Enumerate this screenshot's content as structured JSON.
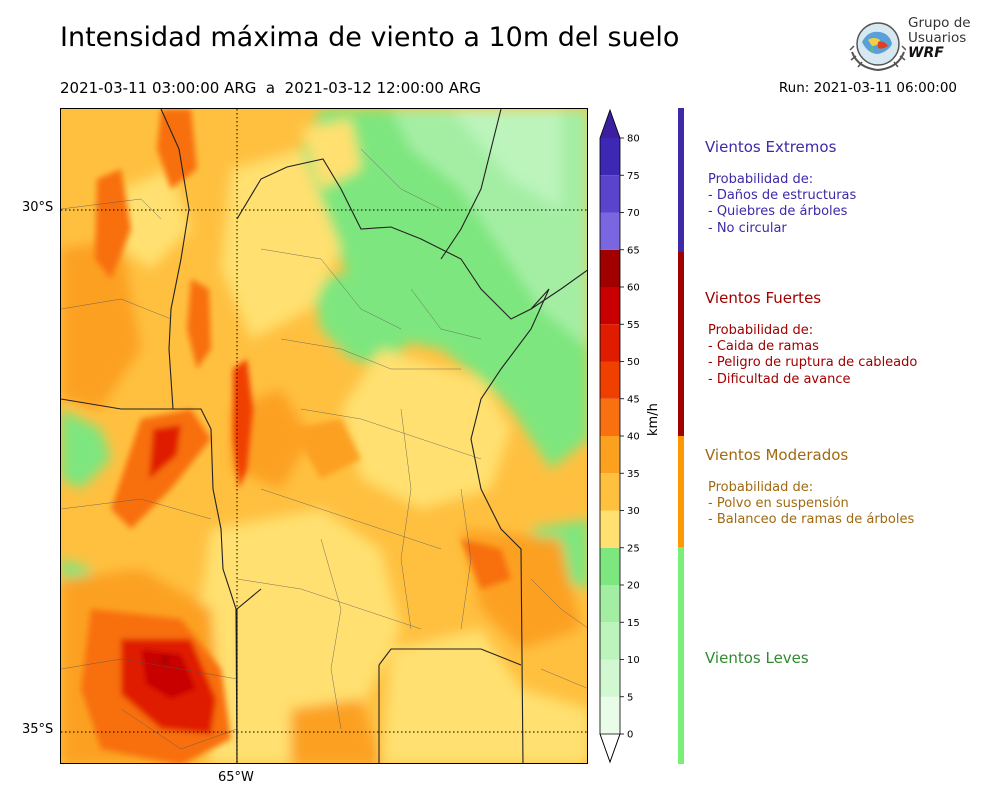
{
  "header": {
    "title": "Intensidad máxima de viento a 10m del suelo",
    "period": "2021-03-11 03:00:00 ARG  a  2021-03-12 12:00:00 ARG",
    "run": "Run: 2021-03-11 06:00:00"
  },
  "logo": {
    "line1": "Grupo de",
    "line2": "Usuarios",
    "line3": "WRF"
  },
  "map": {
    "lat_labels": [
      "30°S",
      "35°S"
    ],
    "lon_labels": [
      "65°W"
    ],
    "grid": "dotted",
    "colors": {
      "light_green": "#90e890",
      "green": "#78e078",
      "pale_yellow": "#ffe070",
      "yellow_orange": "#ffc040",
      "orange": "#f8a020",
      "dark_orange": "#f07010",
      "red_orange": "#e83800",
      "red": "#d01010",
      "dark_red": "#a00000"
    }
  },
  "colorbar": {
    "unit": "km/h",
    "ticks": [
      "80",
      "75",
      "70",
      "65",
      "60",
      "55",
      "50",
      "45",
      "40",
      "35",
      "30",
      "25",
      "20",
      "15",
      "10",
      "5",
      "0"
    ],
    "levels": [
      {
        "from": 0,
        "to": 5,
        "color": "#e8fce8"
      },
      {
        "from": 5,
        "to": 10,
        "color": "#d2f8d2"
      },
      {
        "from": 10,
        "to": 15,
        "color": "#bcf4bc"
      },
      {
        "from": 15,
        "to": 20,
        "color": "#a4eea4"
      },
      {
        "from": 20,
        "to": 25,
        "color": "#7ee67e"
      },
      {
        "from": 25,
        "to": 30,
        "color": "#ffe070"
      },
      {
        "from": 30,
        "to": 35,
        "color": "#ffc040"
      },
      {
        "from": 35,
        "to": 40,
        "color": "#fca020"
      },
      {
        "from": 40,
        "to": 45,
        "color": "#f87010"
      },
      {
        "from": 45,
        "to": 50,
        "color": "#f04000"
      },
      {
        "from": 50,
        "to": 55,
        "color": "#e01c00"
      },
      {
        "from": 55,
        "to": 60,
        "color": "#c80000"
      },
      {
        "from": 60,
        "to": 65,
        "color": "#a00000"
      },
      {
        "from": 65,
        "to": 70,
        "color": "#7a66e0"
      },
      {
        "from": 70,
        "to": 75,
        "color": "#5a44cc"
      },
      {
        "from": 75,
        "to": 80,
        "color": "#3c28b4"
      }
    ],
    "extend_top_color": "#3c1ea0",
    "extend_bottom_color": "#ffffff"
  },
  "categories": [
    {
      "title": "Vientos Extremos",
      "color": "#3c2aa8",
      "lines": "Probabilidad de:\n- Daños de estructuras\n- Quiebres de árboles\n- No circular"
    },
    {
      "title": "Vientos Fuertes",
      "color": "#a00000",
      "lines": "Probabilidad de:\n- Caida de ramas\n- Peligro de ruptura de cableado\n- Dificultad de avance"
    },
    {
      "title": "Vientos Moderados",
      "color": "#ff9800",
      "text_color": "#a06a10",
      "lines": "Probabilidad de:\n- Polvo en suspensión\n- Balanceo de ramas de árboles"
    },
    {
      "title": "Vientos Leves",
      "color": "#78f078",
      "text_color": "#2e8b2e",
      "lines": ""
    }
  ]
}
